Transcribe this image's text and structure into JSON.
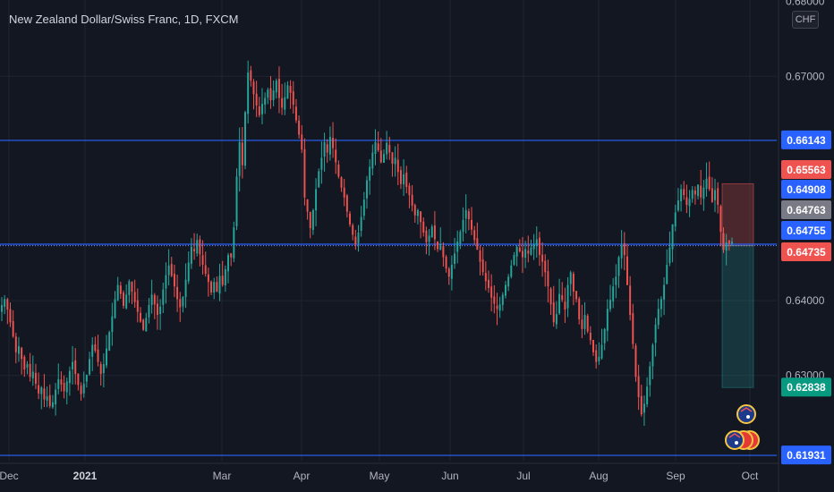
{
  "header": {
    "title": "New Zealand Dollar/Swiss Franc, 1D, FXCM",
    "currency": "CHF"
  },
  "colors": {
    "background": "#131722",
    "up": "#26a69a",
    "down": "#ef5350",
    "level_line": "#2962ff",
    "grid": "#1f2430"
  },
  "chart_data": {
    "type": "candlestick",
    "symbol": "NZDCHF",
    "interval": "1D",
    "ylim": [
      0.6186,
      0.6802
    ],
    "y_ticks": [
      "0.67000",
      "0.64000",
      "0.63000"
    ],
    "y_ticks_partial": [
      "0.68000",
      "0.62000"
    ],
    "x_labels": [
      "Dec",
      "2021",
      "Mar",
      "Apr",
      "May",
      "Jun",
      "Jul",
      "Aug",
      "Sep",
      "Oct"
    ],
    "price_labels": [
      {
        "value": "0.66143",
        "color": "#2962ff"
      },
      {
        "value": "0.65563",
        "color": "#ef5350"
      },
      {
        "value": "0.64908",
        "color": "#2962ff"
      },
      {
        "value": "0.64763",
        "color": "#787b86"
      },
      {
        "value": "0.64755",
        "color": "#2962ff"
      },
      {
        "value": "0.64735",
        "color": "#ef5350"
      },
      {
        "value": "0.62838",
        "color": "#089981"
      },
      {
        "value": "0.61931",
        "color": "#2962ff"
      }
    ],
    "horizontal_levels": [
      0.66143,
      0.64755,
      0.64735,
      0.61931
    ],
    "position": {
      "type": "short",
      "entry": 0.64735,
      "stop": 0.65563,
      "target": 0.62838
    },
    "closes": [
      0.6394,
      0.6402,
      0.6388,
      0.6371,
      0.6352,
      0.6331,
      0.6339,
      0.6322,
      0.6308,
      0.6315,
      0.6298,
      0.6305,
      0.6289,
      0.6276,
      0.6284,
      0.6268,
      0.6272,
      0.6259,
      0.6264,
      0.6281,
      0.6295,
      0.6288,
      0.6279,
      0.6292,
      0.6306,
      0.6318,
      0.6302,
      0.6287,
      0.6275,
      0.6289,
      0.6301,
      0.6322,
      0.6341,
      0.6333,
      0.6318,
      0.6302,
      0.6315,
      0.6336,
      0.6358,
      0.6379,
      0.6402,
      0.6421,
      0.6409,
      0.6393,
      0.6408,
      0.6426,
      0.6412,
      0.6398,
      0.6385,
      0.6372,
      0.6361,
      0.6377,
      0.6394,
      0.6408,
      0.6395,
      0.6381,
      0.6392,
      0.6415,
      0.6434,
      0.6447,
      0.6433,
      0.6419,
      0.6402,
      0.6391,
      0.6405,
      0.6428,
      0.6451,
      0.6472,
      0.6466,
      0.6481,
      0.6462,
      0.6448,
      0.6436,
      0.6425,
      0.6411,
      0.6425,
      0.6412,
      0.6433,
      0.6421,
      0.6442,
      0.6461,
      0.6458,
      0.6498,
      0.6566,
      0.6612,
      0.6581,
      0.6652,
      0.6705,
      0.6694,
      0.6676,
      0.6661,
      0.6648,
      0.6663,
      0.6671,
      0.6682,
      0.6668,
      0.6681,
      0.6694,
      0.6671,
      0.6658,
      0.6672,
      0.6688,
      0.6678,
      0.6662,
      0.6641,
      0.6622,
      0.6602,
      0.6538,
      0.6519,
      0.6497,
      0.6521,
      0.6549,
      0.6573,
      0.6591,
      0.6612,
      0.6598,
      0.6619,
      0.6604,
      0.6585,
      0.6566,
      0.6551,
      0.6538,
      0.6519,
      0.6502,
      0.6488,
      0.6475,
      0.6491,
      0.6512,
      0.6535,
      0.6561,
      0.6579,
      0.6598,
      0.6612,
      0.6601,
      0.6585,
      0.6596,
      0.6611,
      0.6598,
      0.6583,
      0.6591,
      0.6572,
      0.6556,
      0.6569,
      0.6552,
      0.6541,
      0.6527,
      0.6514,
      0.6521,
      0.6505,
      0.6491,
      0.6478,
      0.6487,
      0.6499,
      0.6482,
      0.6469,
      0.6476,
      0.6458,
      0.6443,
      0.6432,
      0.6448,
      0.6463,
      0.6479,
      0.6492,
      0.6508,
      0.6521,
      0.6509,
      0.6495,
      0.6481,
      0.6468,
      0.6452,
      0.6438,
      0.6426,
      0.6417,
      0.6404,
      0.6396,
      0.6389,
      0.6395,
      0.6408,
      0.6421,
      0.6432,
      0.6447,
      0.6461,
      0.6472,
      0.6466,
      0.6458,
      0.6469,
      0.6463,
      0.6471,
      0.6475,
      0.6482,
      0.6461,
      0.6452,
      0.6438,
      0.6419,
      0.6395,
      0.6371,
      0.6382,
      0.6409,
      0.6401,
      0.6388,
      0.6421,
      0.6438,
      0.6412,
      0.6402,
      0.6375,
      0.6362,
      0.6381,
      0.6359,
      0.6347,
      0.6331,
      0.6318,
      0.6325,
      0.6341,
      0.6362,
      0.6389,
      0.6401,
      0.6419,
      0.6432,
      0.6458,
      0.6474,
      0.6461,
      0.6421,
      0.6381,
      0.6342,
      0.6298,
      0.6271,
      0.6248,
      0.6262,
      0.6285,
      0.6312,
      0.6341,
      0.6368,
      0.6389,
      0.6402,
      0.6421,
      0.6448,
      0.6471,
      0.6502,
      0.6518,
      0.6534,
      0.6549,
      0.6541,
      0.6528,
      0.6536,
      0.6548,
      0.6542,
      0.6555,
      0.6538,
      0.6551,
      0.6563,
      0.6549,
      0.6532,
      0.6548,
      0.6528,
      0.6492,
      0.6468,
      0.6478,
      0.6476,
      0.6479
    ]
  }
}
